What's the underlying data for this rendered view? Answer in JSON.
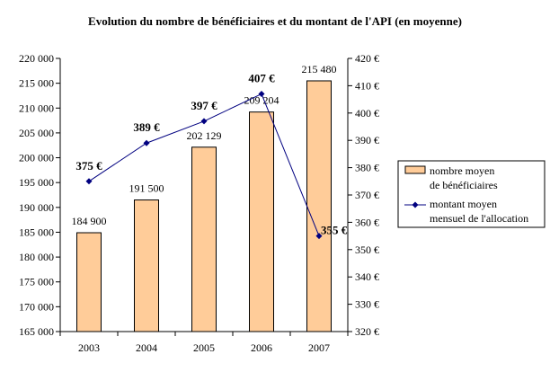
{
  "chart_data": {
    "type": "bar+line",
    "title": "Evolution du nombre de bénéficiaires et du montant de l'API (en moyenne)",
    "categories": [
      "2003",
      "2004",
      "2005",
      "2006",
      "2007"
    ],
    "series": [
      {
        "name": "nombre moyen de bénéficiaires",
        "legend_lines": [
          "nombre moyen",
          "de bénéficiaires"
        ],
        "type": "bar",
        "axis": "left",
        "values": [
          184900,
          191500,
          202129,
          209204,
          215480
        ],
        "labels": [
          "184 900",
          "191 500",
          "202 129",
          "209 204",
          "215 480"
        ]
      },
      {
        "name": "montant moyen mensuel de l'allocation",
        "legend_lines": [
          "montant moyen",
          "mensuel de l'allocation"
        ],
        "type": "line",
        "axis": "right",
        "values": [
          375,
          389,
          397,
          407,
          355
        ],
        "labels": [
          "375 €",
          "389 €",
          "397 €",
          "407 €",
          "355 €"
        ]
      }
    ],
    "y_left": {
      "min": 165000,
      "max": 220000,
      "ticks": [
        "165 000",
        "170 000",
        "175 000",
        "180 000",
        "185 000",
        "190 000",
        "195 000",
        "200 000",
        "205 000",
        "210 000",
        "215 000",
        "220 000"
      ]
    },
    "y_right": {
      "min": 320,
      "max": 420,
      "ticks": [
        "320 €",
        "330 €",
        "340 €",
        "350 €",
        "360 €",
        "370 €",
        "380 €",
        "390 €",
        "400 €",
        "410 €",
        "420 €"
      ]
    },
    "grid": false,
    "legend_position": "right",
    "colors": {
      "bar_fill": "#FFCC99",
      "bar_stroke": "#000000",
      "line": "#000080"
    }
  }
}
